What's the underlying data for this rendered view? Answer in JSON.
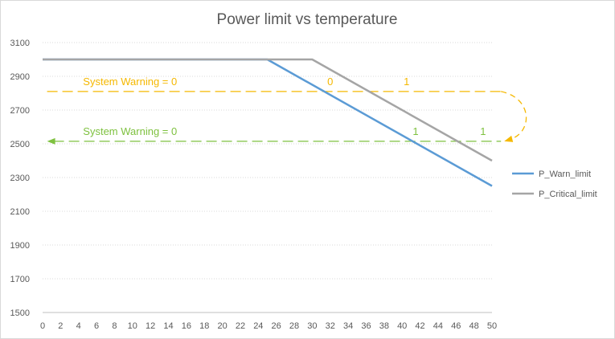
{
  "chart_data": {
    "type": "line",
    "title": "Power limit vs temperature",
    "xlabel": "",
    "ylabel": "",
    "x": [
      0,
      2,
      4,
      6,
      8,
      10,
      12,
      14,
      16,
      18,
      20,
      22,
      24,
      26,
      28,
      30,
      32,
      34,
      36,
      38,
      40,
      42,
      44,
      46,
      48,
      50
    ],
    "xlim": [
      0,
      50
    ],
    "ylim": [
      1500,
      3100
    ],
    "yticks": [
      1500,
      1700,
      1900,
      2100,
      2300,
      2500,
      2700,
      2900,
      3100
    ],
    "grid": "horizontal dotted",
    "legend_position": "right",
    "series": [
      {
        "name": "P_Warn_limit",
        "color": "#5b9bd5",
        "points": [
          [
            0,
            3000
          ],
          [
            25,
            3000
          ],
          [
            50,
            2250
          ]
        ]
      },
      {
        "name": "P_Critical_limit",
        "color": "#a5a5a5",
        "points": [
          [
            0,
            3000
          ],
          [
            30,
            3000
          ],
          [
            50,
            2400
          ]
        ]
      }
    ],
    "annotations": {
      "warning_line": {
        "y": 2810,
        "x_start": 0.5,
        "x_end": 51,
        "color": "#f5b800",
        "label": "System Warning = 0",
        "label_x": 4.5,
        "marks": [
          {
            "x": 32,
            "text": "0"
          },
          {
            "x": 40.5,
            "text": "1"
          }
        ]
      },
      "clear_line": {
        "y": 2515,
        "x_start": 0.5,
        "x_end": 51,
        "color": "#7ec13f",
        "label": "System Warning = 0",
        "label_x": 4.5,
        "marks": [
          {
            "x": 41.5,
            "text": "1"
          },
          {
            "x": 49,
            "text": "1"
          }
        ]
      }
    }
  }
}
